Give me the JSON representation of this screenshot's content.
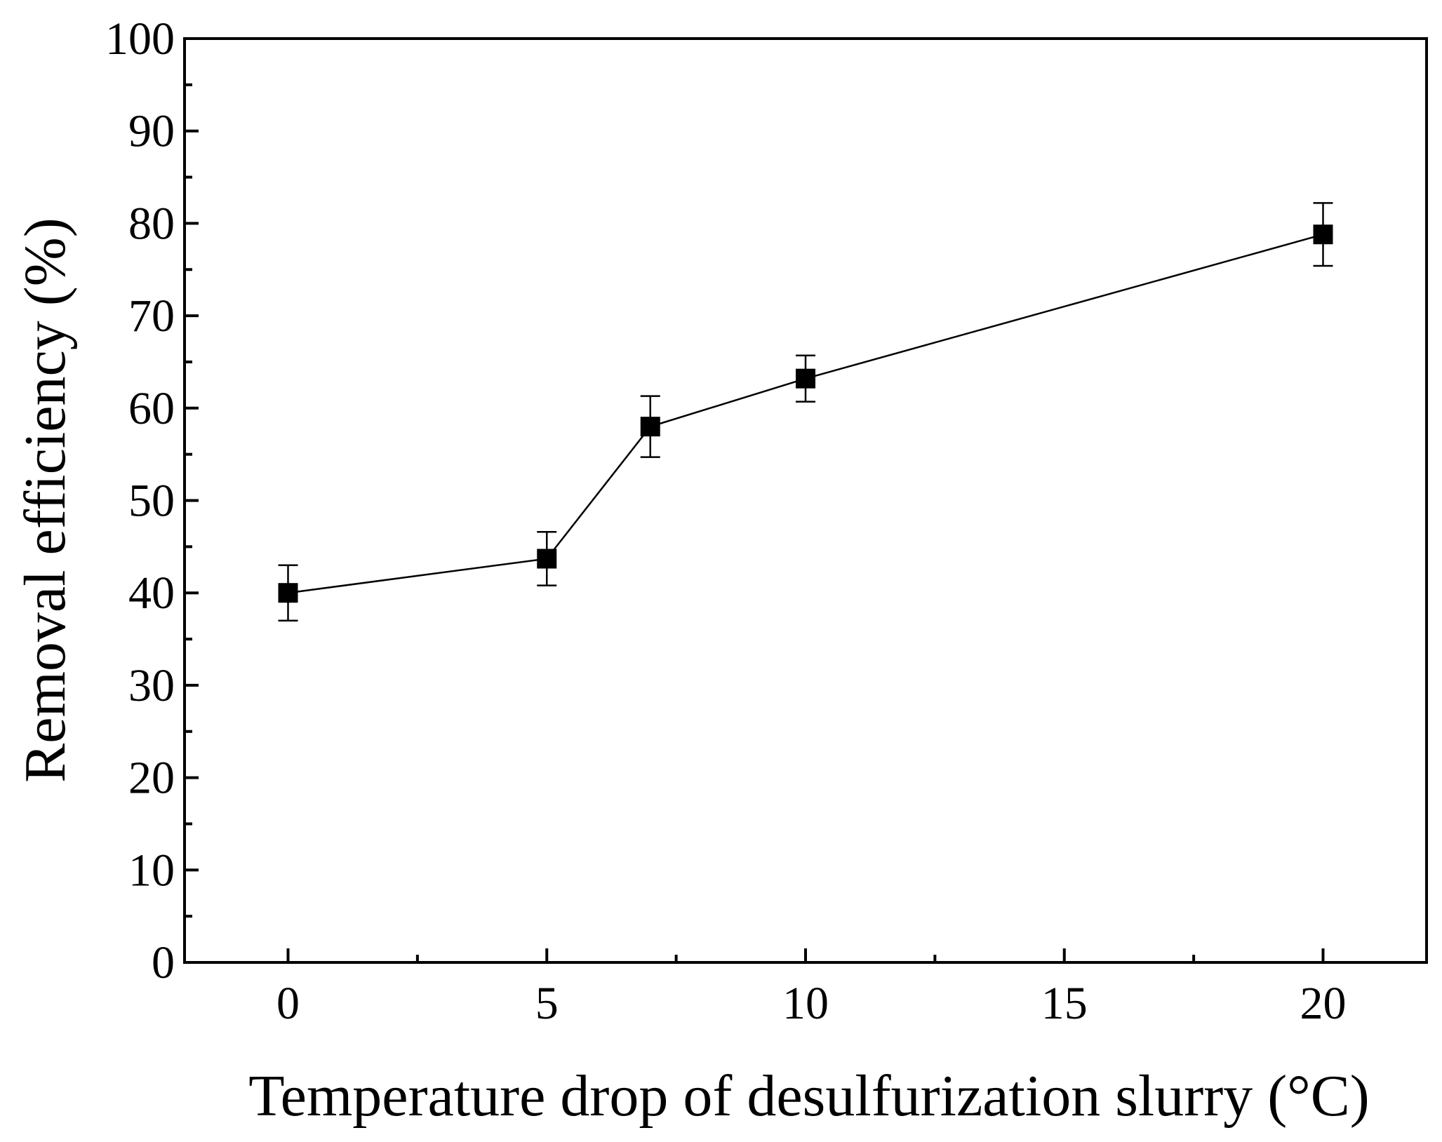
{
  "chart_data": {
    "type": "scatter",
    "xlabel": "Temperature drop of desulfurization slurry (°C)",
    "ylabel": "Removal efficiency (%)",
    "xlim": [
      -2,
      22
    ],
    "ylim": [
      0,
      100
    ],
    "x_ticks": [
      0,
      5,
      10,
      15,
      20
    ],
    "y_ticks": [
      0,
      10,
      20,
      30,
      40,
      50,
      60,
      70,
      80,
      90,
      100
    ],
    "x_minor_ticks": [
      2.5,
      7.5,
      12.5,
      17.5
    ],
    "y_minor_ticks": [
      5,
      15,
      25,
      35,
      45,
      55,
      65,
      75,
      85,
      95
    ],
    "grid": false,
    "legend": "none",
    "marker": "square",
    "connected": true,
    "series": [
      {
        "x": [
          0,
          5,
          7,
          10,
          20
        ],
        "y": [
          40,
          43.7,
          58,
          63.2,
          78.8
        ],
        "error": [
          3,
          2.9,
          3.3,
          2.5,
          3.4
        ]
      }
    ],
    "colors": {
      "ink": "#000000",
      "background": "#ffffff"
    }
  }
}
